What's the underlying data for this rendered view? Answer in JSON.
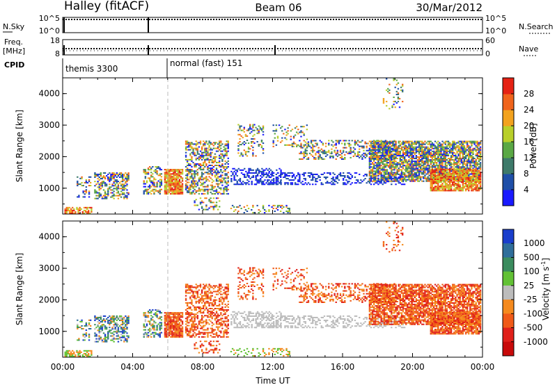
{
  "header": {
    "title_left": "Halley (fitACF)",
    "title_center": "Beam 06",
    "title_right": "30/Mar/2012"
  },
  "noise_panel": {
    "left_label": "N.Sky",
    "right_label": "N.Search",
    "left_ticks": [
      "10^5",
      "10^0"
    ],
    "right_ticks": [
      "10^5",
      "10^0"
    ]
  },
  "freq_panel": {
    "left_label_1": "Freq.",
    "left_label_2": "[MHz]",
    "right_label": "Nave",
    "left_ticks": [
      "18",
      "8"
    ],
    "right_ticks": [
      "60",
      "0"
    ]
  },
  "cpid_panel": {
    "label": "CPID",
    "programs": [
      {
        "name": "themis 3300",
        "start_hour": 0
      },
      {
        "name": "normal (fast) 151",
        "start_hour": 6
      }
    ]
  },
  "chart_data": [
    {
      "type": "heatmap",
      "panel": "power",
      "ylabel": "Slant Range [km]",
      "yticks": [
        "1000",
        "2000",
        "3000",
        "4000"
      ],
      "ylim": [
        180,
        4500
      ],
      "xlim": [
        0,
        24
      ],
      "colorbar_label": "Power [dB]",
      "colorbar_ticks": [
        "4",
        "8",
        "12",
        "16",
        "20",
        "24",
        "28"
      ],
      "colorbar_colors": [
        "#1a1aff",
        "#1f4fa8",
        "#3e7a6a",
        "#5aa845",
        "#b8cf2a",
        "#f2a21e",
        "#f0641c",
        "#e52214"
      ]
    },
    {
      "type": "heatmap",
      "panel": "velocity",
      "ylabel": "Slant Range [km]",
      "yticks": [
        "1000",
        "2000",
        "3000",
        "4000"
      ],
      "ylim": [
        180,
        4500
      ],
      "xlim": [
        0,
        24
      ],
      "colorbar_label": "Velocity [m s",
      "colorbar_label_sup": "-1",
      "colorbar_label_end": "]",
      "colorbar_ticks": [
        "1000",
        "500",
        "100",
        "25",
        "-25",
        "-100",
        "-500",
        "-1000"
      ],
      "colorbar_colors": [
        "#1a3ecc",
        "#2f6e9a",
        "#3b8c5e",
        "#62c135",
        "#bcbcbc",
        "#f58a1e",
        "#f05a18",
        "#e0201a",
        "#c80a0a"
      ]
    }
  ],
  "x_axis": {
    "ticks": [
      "00:00",
      "04:00",
      "08:00",
      "12:00",
      "16:00",
      "20:00",
      "00:00"
    ],
    "label": "Time UT"
  }
}
